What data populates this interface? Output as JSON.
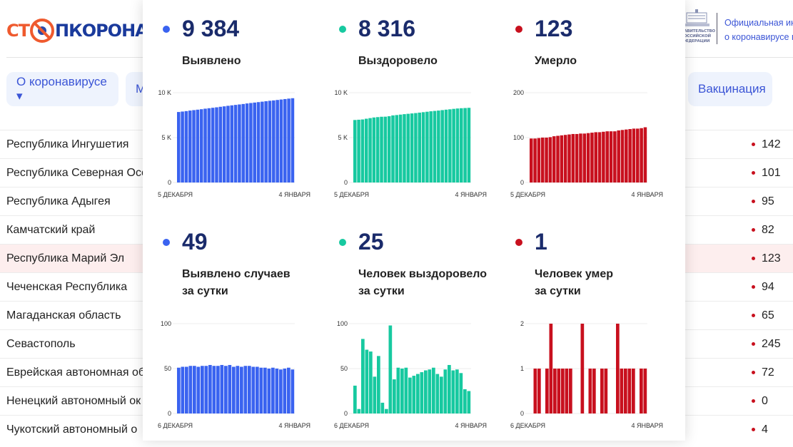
{
  "header": {
    "logo_text": "СТОПКОРОНАВИРУС",
    "logo_part1": "СТ",
    "logo_part2": "ПКОРОНАВИ",
    "gov_text_line1": "Официальная ин",
    "gov_text_line2": "о коронавирусе в",
    "gov_emblem_text": "ПРАВИТЕЛЬСТВО РОССИЙСКОЙ ФЕДЕРАЦИИ"
  },
  "nav": {
    "about": "О коронавирусе ▾",
    "second": "М",
    "vaccination": "Вакцинация"
  },
  "table": {
    "rows": [
      {
        "name": "Республика Ингушетия",
        "value": "142"
      },
      {
        "name": "Республика Северная Осе",
        "value": "101"
      },
      {
        "name": "Республика Адыгея",
        "value": "95"
      },
      {
        "name": "Камчатский край",
        "value": "82"
      },
      {
        "name": "Республика Марий Эл",
        "value": "123",
        "highlighted": true
      },
      {
        "name": "Чеченская Республика",
        "value": "94"
      },
      {
        "name": "Магаданская область",
        "value": "65"
      },
      {
        "name": "Севастополь",
        "value": "245"
      },
      {
        "name": "Еврейская автономная об",
        "value": "72"
      },
      {
        "name": "Ненецкий автономный ок",
        "value": "0"
      },
      {
        "name": "Чукотский автономный о",
        "value": "4"
      }
    ]
  },
  "colors": {
    "detected": "#3a63f0",
    "recovered": "#17c9a0",
    "deaths": "#c8101e",
    "highlight_row": "#fdeeee",
    "nav_bg": "#eef3fd",
    "nav_text": "#3b55d6"
  },
  "stats": [
    {
      "number": "9 384",
      "label1": "Выявлено",
      "label2": ""
    },
    {
      "number": "8 316",
      "label1": "Выздоровело",
      "label2": ""
    },
    {
      "number": "123",
      "label1": "Умерло",
      "label2": ""
    },
    {
      "number": "49",
      "label1": "Выявлено случаев",
      "label2": "за сутки"
    },
    {
      "number": "25",
      "label1": "Человек выздоровело",
      "label2": "за сутки"
    },
    {
      "number": "1",
      "label1": "Человек умер",
      "label2": "за сутки"
    }
  ],
  "chart_data": [
    {
      "type": "bar",
      "color": "#3a63f0",
      "ylim": [
        0,
        10000
      ],
      "yticks": [
        "0",
        "5 K",
        "10 K"
      ],
      "x_start": "5 ДЕКАБРЯ",
      "x_end": "4 ЯНВАРЯ",
      "grid": true,
      "values": [
        7850,
        7900,
        7950,
        8010,
        8060,
        8110,
        8160,
        8220,
        8270,
        8320,
        8370,
        8430,
        8480,
        8540,
        8590,
        8640,
        8690,
        8740,
        8800,
        8850,
        8900,
        8950,
        9000,
        9050,
        9100,
        9140,
        9190,
        9240,
        9290,
        9340,
        9384
      ]
    },
    {
      "type": "bar",
      "color": "#17c9a0",
      "ylim": [
        0,
        10000
      ],
      "yticks": [
        "0",
        "5 K",
        "10 K"
      ],
      "x_start": "5 ДЕКАБРЯ",
      "x_end": "4 ЯНВАРЯ",
      "grid": true,
      "values": [
        6960,
        6990,
        7020,
        7100,
        7170,
        7240,
        7280,
        7320,
        7330,
        7380,
        7470,
        7510,
        7560,
        7610,
        7650,
        7690,
        7730,
        7780,
        7830,
        7880,
        7930,
        7970,
        8010,
        8060,
        8110,
        8150,
        8200,
        8240,
        8270,
        8291,
        8316
      ]
    },
    {
      "type": "bar",
      "color": "#c8101e",
      "ylim": [
        0,
        200
      ],
      "yticks": [
        "0",
        "100",
        "200"
      ],
      "x_start": "5 ДЕКАБРЯ",
      "x_end": "4 ЯНВАРЯ",
      "grid": true,
      "values": [
        98,
        98,
        99,
        100,
        100,
        101,
        103,
        104,
        105,
        106,
        107,
        108,
        108,
        109,
        109,
        110,
        111,
        112,
        112,
        113,
        114,
        114,
        114,
        116,
        117,
        118,
        119,
        120,
        120,
        121,
        123
      ]
    },
    {
      "type": "bar",
      "color": "#3a63f0",
      "ylim": [
        0,
        100
      ],
      "yticks": [
        "0",
        "50",
        "100"
      ],
      "x_start": "6 ДЕКАБРЯ",
      "x_end": "4 ЯНВАРЯ",
      "grid": true,
      "values": [
        51,
        52,
        52,
        53,
        53,
        52,
        53,
        53,
        54,
        53,
        53,
        54,
        53,
        54,
        52,
        53,
        52,
        53,
        53,
        52,
        52,
        51,
        51,
        50,
        51,
        50,
        49,
        50,
        51,
        49
      ]
    },
    {
      "type": "bar",
      "color": "#17c9a0",
      "ylim": [
        0,
        100
      ],
      "yticks": [
        "0",
        "50",
        "100"
      ],
      "x_start": "6 ДЕКАБРЯ",
      "x_end": "4 ЯНВАРЯ",
      "grid": true,
      "values": [
        31,
        5,
        83,
        71,
        69,
        41,
        64,
        12,
        5,
        98,
        38,
        51,
        50,
        51,
        40,
        42,
        44,
        46,
        48,
        49,
        51,
        44,
        41,
        49,
        54,
        48,
        49,
        45,
        27,
        25
      ]
    },
    {
      "type": "bar",
      "color": "#c8101e",
      "ylim": [
        0,
        2
      ],
      "yticks": [
        "0",
        "1",
        "2"
      ],
      "x_start": "6 ДЕКАБРЯ",
      "x_end": "4 ЯНВАРЯ",
      "grid": true,
      "values": [
        0,
        1,
        1,
        0,
        1,
        2,
        1,
        1,
        1,
        1,
        1,
        0,
        0,
        2,
        0,
        1,
        1,
        0,
        1,
        1,
        0,
        0,
        2,
        1,
        1,
        1,
        1,
        0,
        1,
        1
      ]
    }
  ]
}
